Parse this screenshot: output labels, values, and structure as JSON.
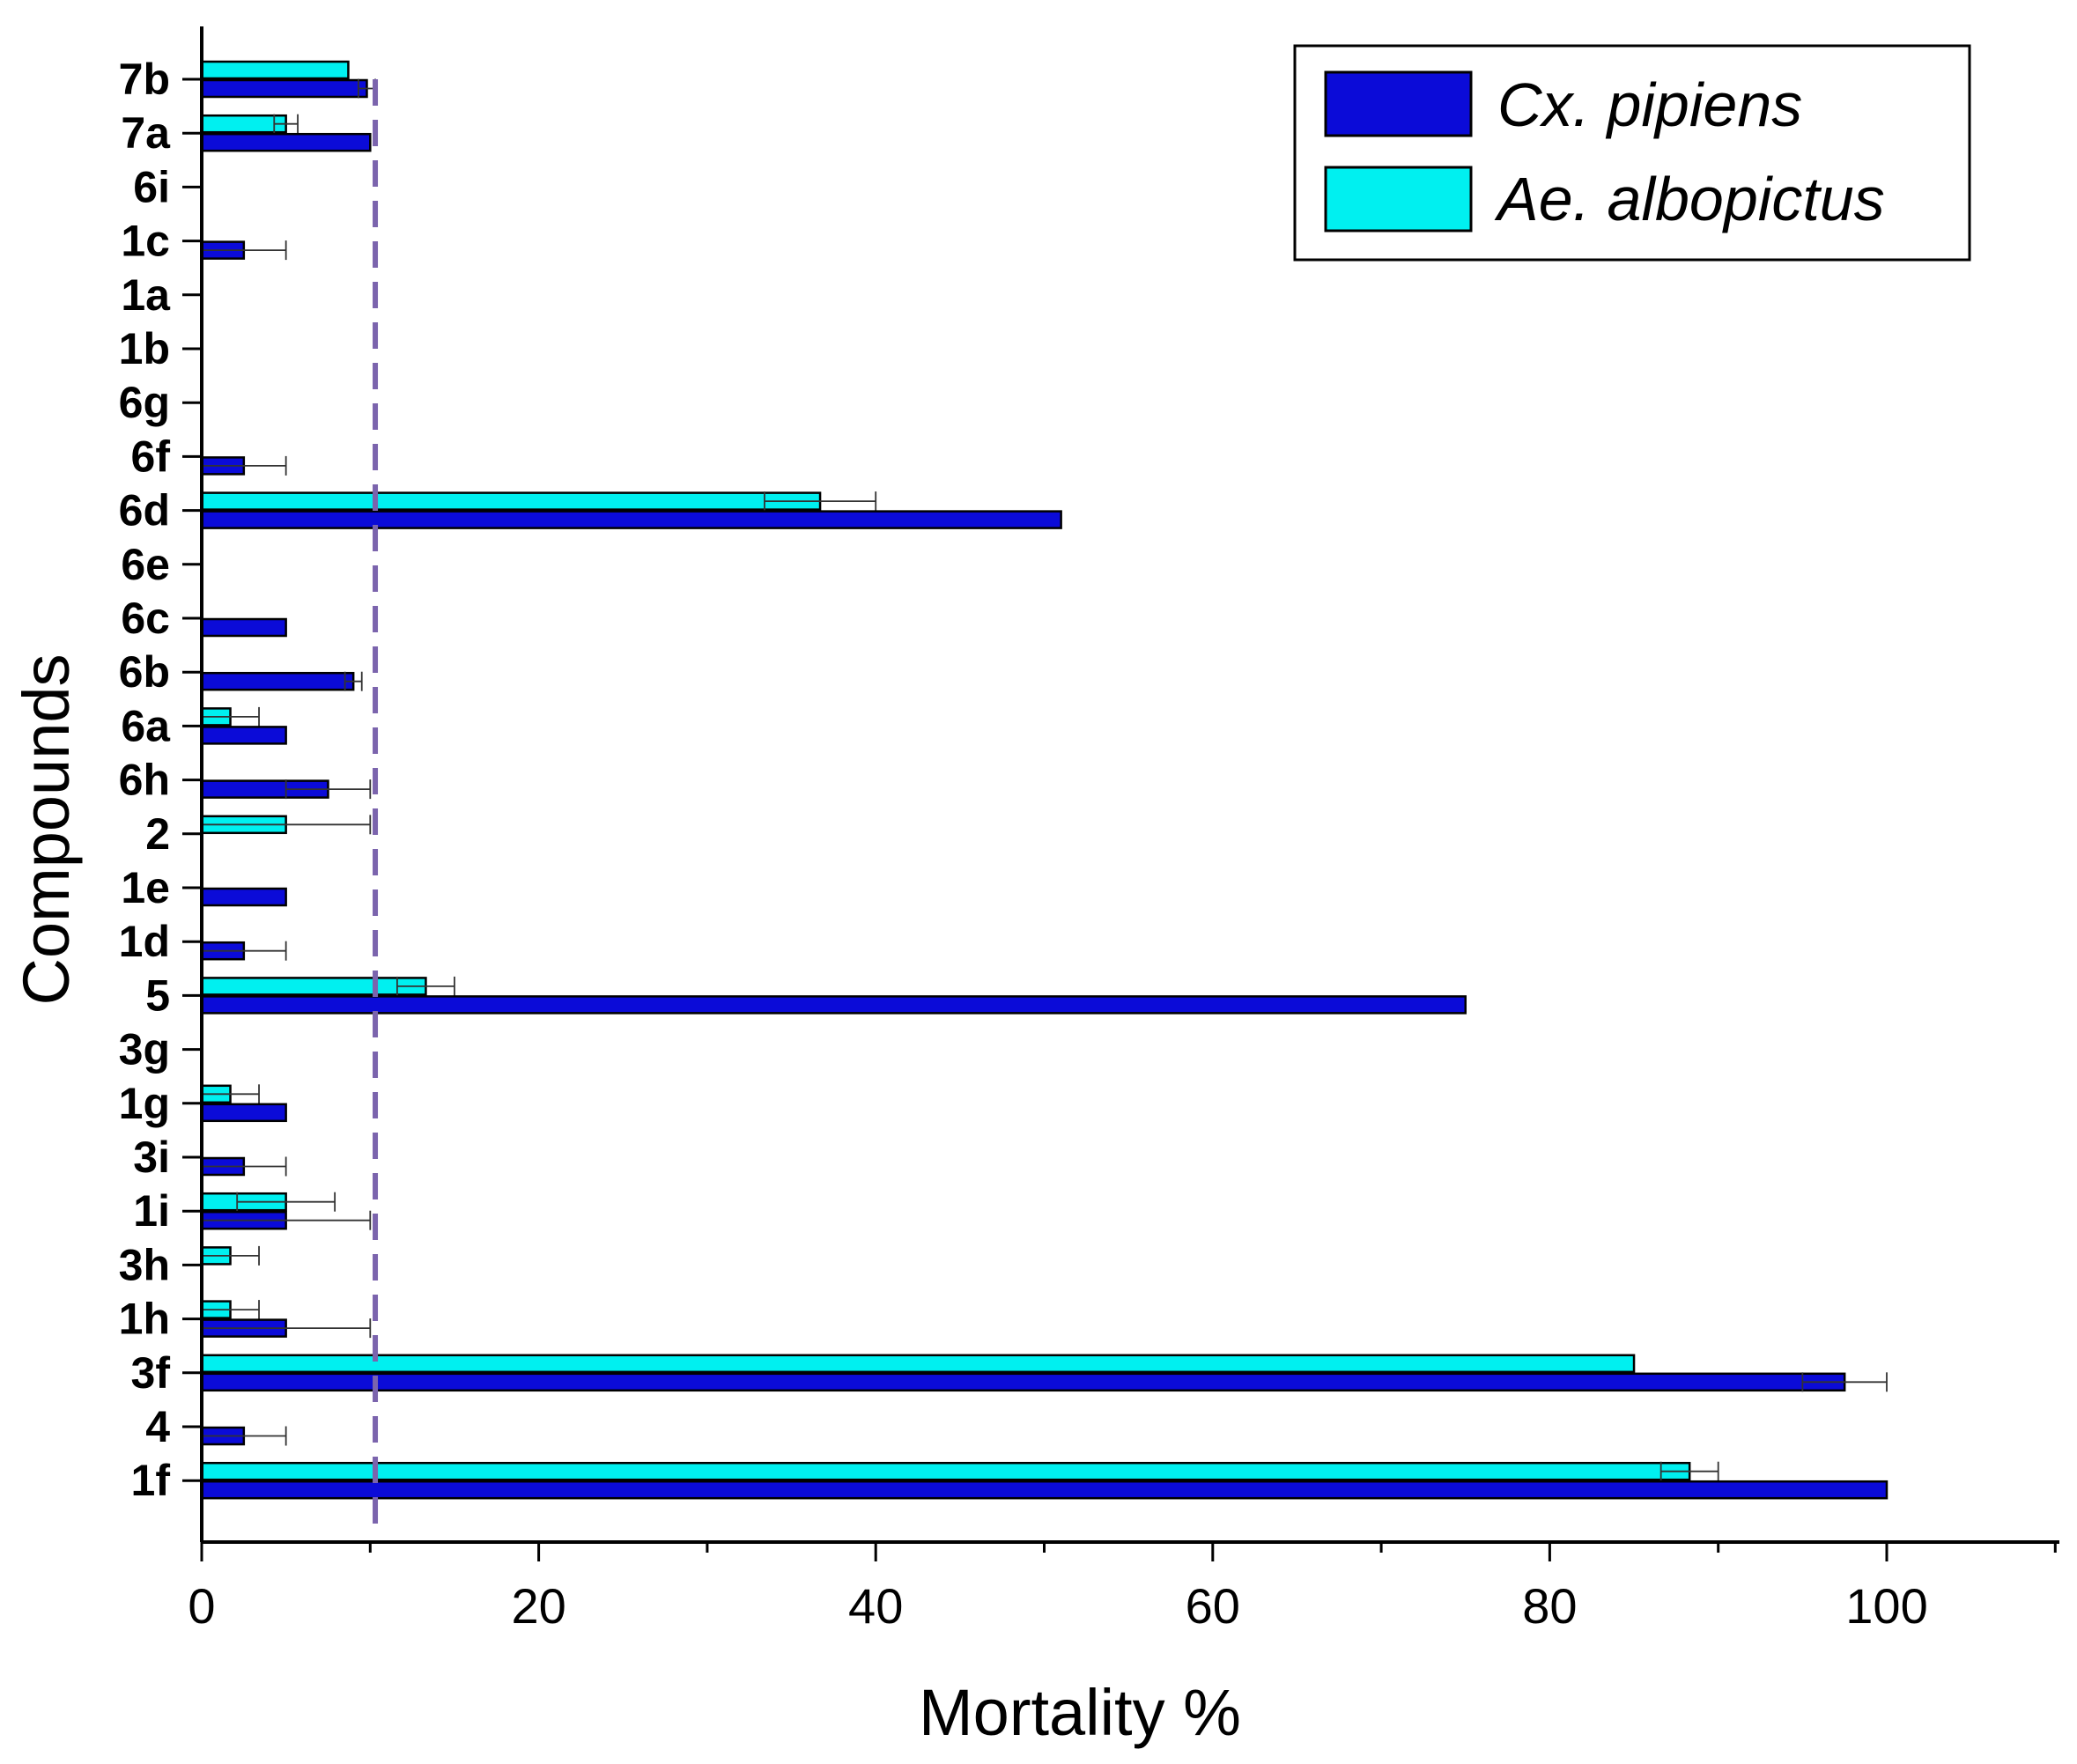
{
  "chart_data": {
    "type": "bar",
    "orientation": "horizontal",
    "title": "",
    "xlabel": "Mortality %",
    "ylabel": "Compounds",
    "xlim": [
      0,
      110
    ],
    "xticks": [
      0,
      20,
      40,
      60,
      80,
      100
    ],
    "x_minor_ticks": [
      10,
      30,
      50,
      70,
      90,
      110
    ],
    "reference_line": {
      "x": 10.3,
      "style": "dashed",
      "color": "#7b64ad"
    },
    "legend_position": "top-right",
    "categories": [
      "7b",
      "7a",
      "6i",
      "1c",
      "1a",
      "1b",
      "6g",
      "6f",
      "6d",
      "6e",
      "6c",
      "6b",
      "6a",
      "6h",
      "2",
      "1e",
      "1d",
      "5",
      "3g",
      "1g",
      "3i",
      "1i",
      "3h",
      "1h",
      "3f",
      "4",
      "1f"
    ],
    "series": [
      {
        "name": "Cx. pipiens",
        "color": "#0b0bd8",
        "values": [
          9.8,
          10,
          0,
          2.5,
          0,
          0,
          0,
          2.5,
          51,
          0,
          5,
          9,
          5,
          7.5,
          0,
          5,
          2.5,
          75,
          0,
          5,
          2.5,
          5,
          0,
          5,
          97.5,
          2.5,
          100
        ],
        "errors": [
          0.5,
          0,
          0,
          2.5,
          0,
          0,
          0,
          2.5,
          0,
          0,
          0,
          0.5,
          0,
          2.5,
          0,
          0,
          2.5,
          0,
          0,
          0,
          2.5,
          5,
          0,
          5,
          2.5,
          2.5,
          0
        ]
      },
      {
        "name": "Ae. albopictus",
        "color": "#00f0f0",
        "values": [
          8.7,
          5,
          0,
          0,
          0,
          0,
          0,
          0,
          36.7,
          0,
          0,
          0,
          1.7,
          0,
          5,
          0,
          0,
          13.3,
          0,
          1.7,
          0,
          5,
          1.7,
          1.7,
          85,
          0,
          88.3
        ],
        "errors": [
          0,
          0.7,
          0,
          0,
          0,
          0,
          0,
          0,
          3.3,
          0,
          0,
          0,
          1.7,
          0,
          5,
          0,
          0,
          1.7,
          0,
          1.7,
          0,
          2.9,
          1.7,
          1.7,
          0,
          0,
          1.7
        ]
      }
    ]
  }
}
